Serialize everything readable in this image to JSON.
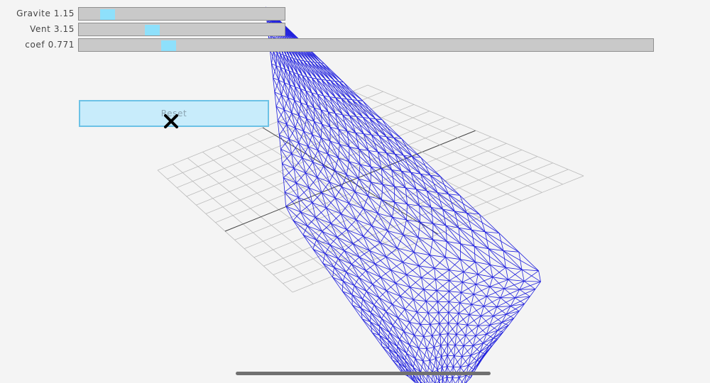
{
  "sliders": [
    {
      "label": "Gravite 1.15",
      "value": 1.15,
      "position": 0.105
    },
    {
      "label": "Vent 3.15",
      "value": 3.15,
      "position": 0.32
    },
    {
      "label": "coef 0.771",
      "value": 0.771,
      "position": 0.143
    }
  ],
  "reset_button": {
    "label": "Reset"
  },
  "colors": {
    "background": "#f4f4f4",
    "track": "#c9c9c9",
    "thumb": "#8ee0fb",
    "button_fill": "#c8ecfb",
    "button_border": "#6cc2e6",
    "mesh": "#2020dd",
    "floor_grid": "#bbbbbb",
    "floor_axis": "#444444"
  },
  "scene": {
    "floor": "grid",
    "cloth": "wireframe-mesh"
  },
  "icons": {
    "cursor": "x-cursor-icon"
  }
}
